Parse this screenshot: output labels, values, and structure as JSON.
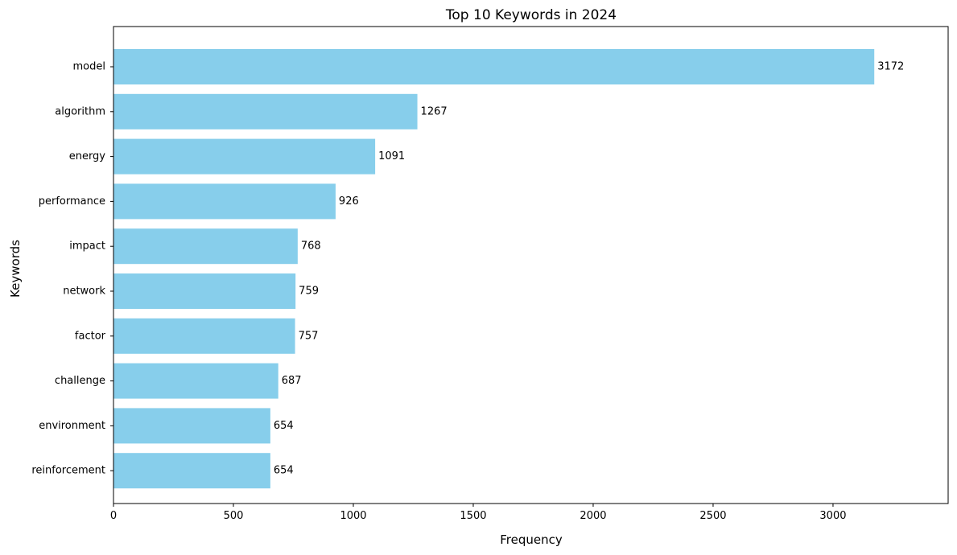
{
  "chart_data": {
    "type": "bar",
    "orientation": "horizontal",
    "title": "Top 10 Keywords in 2024",
    "xlabel": "Frequency",
    "ylabel": "Keywords",
    "categories": [
      "model",
      "algorithm",
      "energy",
      "performance",
      "impact",
      "network",
      "factor",
      "challenge",
      "environment",
      "reinforcement"
    ],
    "values": [
      3172,
      1267,
      1091,
      926,
      768,
      759,
      757,
      687,
      654,
      654
    ],
    "xlim": [
      0,
      3480
    ],
    "xticks": [
      0,
      500,
      1000,
      1500,
      2000,
      2500,
      3000
    ],
    "xtick_labels": [
      "0",
      "500",
      "1000",
      "1500",
      "2000",
      "2500",
      "3000"
    ],
    "data_labels": [
      "3172",
      "1267",
      "1091",
      "926",
      "768",
      "759",
      "757",
      "687",
      "654",
      "654"
    ],
    "bar_color": "#87CEEB",
    "grid": false,
    "legend": "none"
  }
}
